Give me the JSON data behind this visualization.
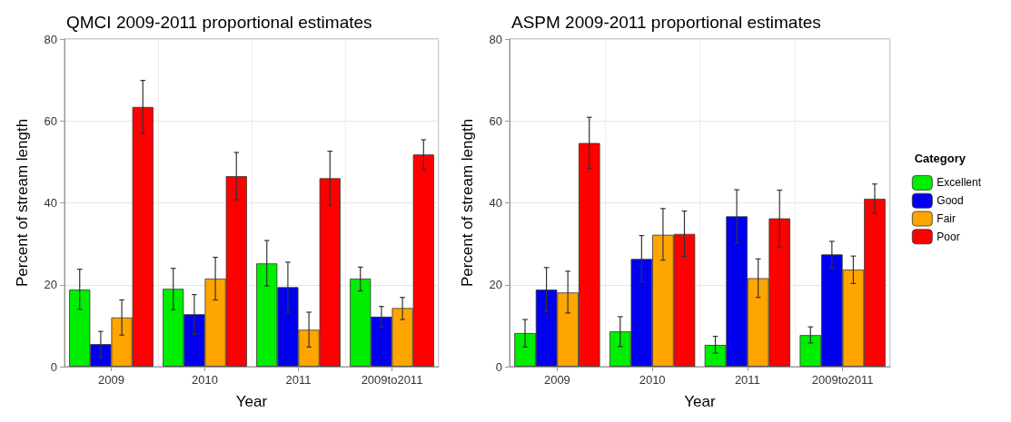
{
  "chart_data": [
    {
      "type": "bar",
      "title": "QMCI 2009-2011 proportional estimates",
      "xlabel": "Year",
      "ylabel": "Percent of stream length",
      "categories": [
        "2009",
        "2010",
        "2011",
        "2009to2011"
      ],
      "ylim": [
        0,
        80
      ],
      "yticks": [
        0,
        20,
        40,
        60,
        80
      ],
      "grid": true,
      "legend": false,
      "series": [
        {
          "color": "#00ee00",
          "values": [
            18.8,
            19.0,
            25.2,
            21.5
          ],
          "errors": [
            [
              14.0,
              23.8
            ],
            [
              13.9,
              24.0
            ],
            [
              19.7,
              30.8
            ],
            [
              18.5,
              24.3
            ]
          ]
        },
        {
          "color": "#0000ee",
          "values": [
            5.5,
            12.8,
            19.4,
            12.2
          ],
          "errors": [
            [
              2.2,
              8.6
            ],
            [
              7.9,
              17.6
            ],
            [
              13.3,
              25.5
            ],
            [
              9.7,
              14.7
            ]
          ]
        },
        {
          "color": "#ffa500",
          "values": [
            12.0,
            21.5,
            9.0,
            14.3
          ],
          "errors": [
            [
              7.7,
              16.3
            ],
            [
              16.3,
              26.7
            ],
            [
              4.8,
              13.3
            ],
            [
              11.5,
              16.9
            ]
          ]
        },
        {
          "color": "#ff0000",
          "values": [
            63.4,
            46.5,
            46.0,
            51.8
          ],
          "errors": [
            [
              56.9,
              69.9
            ],
            [
              40.7,
              52.3
            ],
            [
              39.4,
              52.6
            ],
            [
              48.1,
              55.4
            ]
          ]
        }
      ]
    },
    {
      "type": "bar",
      "title": "ASPM 2009-2011 proportional estimates",
      "xlabel": "Year",
      "ylabel": "Percent of stream length",
      "categories": [
        "2009",
        "2010",
        "2011",
        "2009to2011"
      ],
      "ylim": [
        0,
        80
      ],
      "yticks": [
        0,
        20,
        40,
        60,
        80
      ],
      "grid": true,
      "legend": "right",
      "legend_title": "Category",
      "series": [
        {
          "name": "Excellent",
          "color": "#00ee00",
          "values": [
            8.2,
            8.6,
            5.3,
            7.7
          ],
          "errors": [
            [
              4.8,
              11.5
            ],
            [
              4.9,
              12.2
            ],
            [
              3.3,
              7.4
            ],
            [
              5.8,
              9.7
            ]
          ]
        },
        {
          "name": "Good",
          "color": "#0000ee",
          "values": [
            18.8,
            26.3,
            36.7,
            27.4
          ],
          "errors": [
            [
              13.5,
              24.2
            ],
            [
              20.7,
              32.0
            ],
            [
              30.1,
              43.2
            ],
            [
              24.1,
              30.6
            ]
          ]
        },
        {
          "name": "Fair",
          "color": "#ffa500",
          "values": [
            18.1,
            32.2,
            21.6,
            23.7
          ],
          "errors": [
            [
              13.1,
              23.3
            ],
            [
              26.0,
              38.6
            ],
            [
              16.9,
              26.3
            ],
            [
              20.3,
              27.0
            ]
          ]
        },
        {
          "name": "Poor",
          "color": "#ff0000",
          "values": [
            54.6,
            32.4,
            36.2,
            41.0
          ],
          "errors": [
            [
              48.4,
              60.9
            ],
            [
              26.9,
              38.0
            ],
            [
              29.2,
              43.1
            ],
            [
              37.4,
              44.6
            ]
          ]
        }
      ]
    }
  ]
}
